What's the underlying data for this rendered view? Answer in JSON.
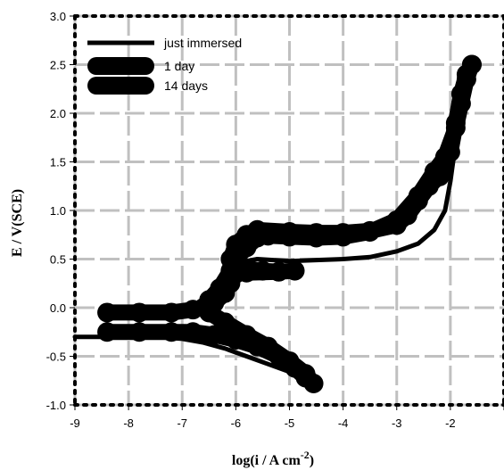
{
  "chart_data": {
    "type": "line",
    "title": "",
    "xlabel": "log(i / A cm",
    "xlabel_superscript": "-2",
    "xlabel_close": ")",
    "ylabel": "E / V(SCE)",
    "xlim": [
      -9,
      -1
    ],
    "ylim": [
      -1.0,
      3.0
    ],
    "x_ticks": [
      -9,
      -8,
      -7,
      -6,
      -5,
      -4,
      -3,
      -2,
      -1
    ],
    "x_tick_labels": [
      "-9",
      "-8",
      "-7",
      "-6",
      "-5",
      "-4",
      "-3",
      "-2",
      ""
    ],
    "y_ticks": [
      -1.0,
      -0.5,
      0.0,
      0.5,
      1.0,
      1.5,
      2.0,
      2.5,
      3.0
    ],
    "y_tick_labels": [
      "-1.0",
      "-0.5",
      "0.0",
      "0.5",
      "1.0",
      "1.5",
      "2.0",
      "2.5",
      "3.0"
    ],
    "grid": true,
    "grid_color": "#c0c0c0",
    "legend_position": "top-left",
    "series": [
      {
        "name": "just immersed",
        "style": "thin",
        "color": "#000000",
        "points": [
          [
            -9.0,
            -0.3
          ],
          [
            -7.5,
            -0.3
          ],
          [
            -7.0,
            -0.32
          ],
          [
            -6.6,
            -0.36
          ],
          [
            -6.2,
            -0.42
          ],
          [
            -5.8,
            -0.5
          ],
          [
            -5.4,
            -0.58
          ],
          [
            -5.0,
            -0.66
          ],
          [
            -4.7,
            -0.74
          ],
          [
            -4.6,
            -0.8
          ],
          [
            -4.7,
            -0.7
          ],
          [
            -5.0,
            -0.52
          ],
          [
            -5.4,
            -0.38
          ],
          [
            -5.8,
            -0.22
          ],
          [
            -6.2,
            -0.08
          ],
          [
            -6.5,
            0.0
          ],
          [
            -6.6,
            0.05
          ],
          [
            -6.4,
            0.18
          ],
          [
            -6.2,
            0.3
          ],
          [
            -6.0,
            0.42
          ],
          [
            -5.8,
            0.48
          ],
          [
            -5.6,
            0.5
          ],
          [
            -5.0,
            0.48
          ],
          [
            -4.5,
            0.49
          ],
          [
            -4.0,
            0.5
          ],
          [
            -3.5,
            0.52
          ],
          [
            -3.0,
            0.58
          ],
          [
            -2.6,
            0.66
          ],
          [
            -2.3,
            0.8
          ],
          [
            -2.1,
            1.0
          ],
          [
            -2.0,
            1.3
          ],
          [
            -1.9,
            1.7
          ],
          [
            -1.8,
            2.1
          ],
          [
            -1.7,
            2.4
          ],
          [
            -1.6,
            2.5
          ]
        ]
      },
      {
        "name": "1 day",
        "style": "thick",
        "color": "#000000",
        "points": [
          [
            -8.4,
            -0.05
          ],
          [
            -7.8,
            -0.05
          ],
          [
            -7.2,
            -0.05
          ],
          [
            -6.8,
            -0.02
          ],
          [
            -6.6,
            0.0
          ],
          [
            -6.4,
            0.05
          ],
          [
            -6.2,
            0.15
          ],
          [
            -6.1,
            0.25
          ],
          [
            -6.0,
            0.35
          ],
          [
            -5.8,
            0.4
          ],
          [
            -5.5,
            0.38
          ],
          [
            -5.2,
            0.37
          ],
          [
            -4.9,
            0.38
          ],
          [
            -5.2,
            0.37
          ],
          [
            -5.8,
            0.36
          ],
          [
            -6.0,
            0.36
          ],
          [
            -6.1,
            0.5
          ],
          [
            -6.0,
            0.65
          ],
          [
            -5.8,
            0.75
          ],
          [
            -5.6,
            0.8
          ],
          [
            -5.0,
            0.78
          ],
          [
            -4.5,
            0.77
          ],
          [
            -4.0,
            0.77
          ],
          [
            -3.5,
            0.79
          ],
          [
            -3.0,
            0.85
          ],
          [
            -2.8,
            0.95
          ],
          [
            -2.6,
            1.1
          ],
          [
            -2.4,
            1.25
          ],
          [
            -2.2,
            1.35
          ],
          [
            -2.0,
            1.6
          ],
          [
            -1.9,
            1.9
          ],
          [
            -1.8,
            2.2
          ],
          [
            -1.7,
            2.4
          ],
          [
            -1.6,
            2.5
          ]
        ]
      },
      {
        "name": "14 days",
        "style": "thick",
        "color": "#000000",
        "points": [
          [
            -8.4,
            -0.25
          ],
          [
            -7.8,
            -0.25
          ],
          [
            -7.2,
            -0.25
          ],
          [
            -6.8,
            -0.25
          ],
          [
            -6.4,
            -0.28
          ],
          [
            -6.0,
            -0.33
          ],
          [
            -5.6,
            -0.4
          ],
          [
            -5.2,
            -0.5
          ],
          [
            -4.9,
            -0.62
          ],
          [
            -4.7,
            -0.72
          ],
          [
            -4.55,
            -0.78
          ],
          [
            -4.7,
            -0.68
          ],
          [
            -5.0,
            -0.55
          ],
          [
            -5.4,
            -0.4
          ],
          [
            -5.8,
            -0.28
          ],
          [
            -6.2,
            -0.15
          ],
          [
            -6.5,
            -0.05
          ],
          [
            -6.6,
            0.0
          ],
          [
            -6.5,
            0.08
          ],
          [
            -6.3,
            0.2
          ],
          [
            -6.1,
            0.38
          ],
          [
            -6.0,
            0.5
          ],
          [
            -5.8,
            0.62
          ],
          [
            -5.6,
            0.72
          ],
          [
            -5.4,
            0.74
          ],
          [
            -5.0,
            0.73
          ],
          [
            -4.5,
            0.72
          ],
          [
            -4.0,
            0.73
          ],
          [
            -3.5,
            0.78
          ],
          [
            -3.0,
            0.9
          ],
          [
            -2.6,
            1.15
          ],
          [
            -2.3,
            1.4
          ],
          [
            -2.1,
            1.55
          ],
          [
            -1.9,
            1.85
          ],
          [
            -1.8,
            2.1
          ],
          [
            -1.7,
            2.35
          ],
          [
            -1.6,
            2.5
          ]
        ]
      }
    ]
  }
}
